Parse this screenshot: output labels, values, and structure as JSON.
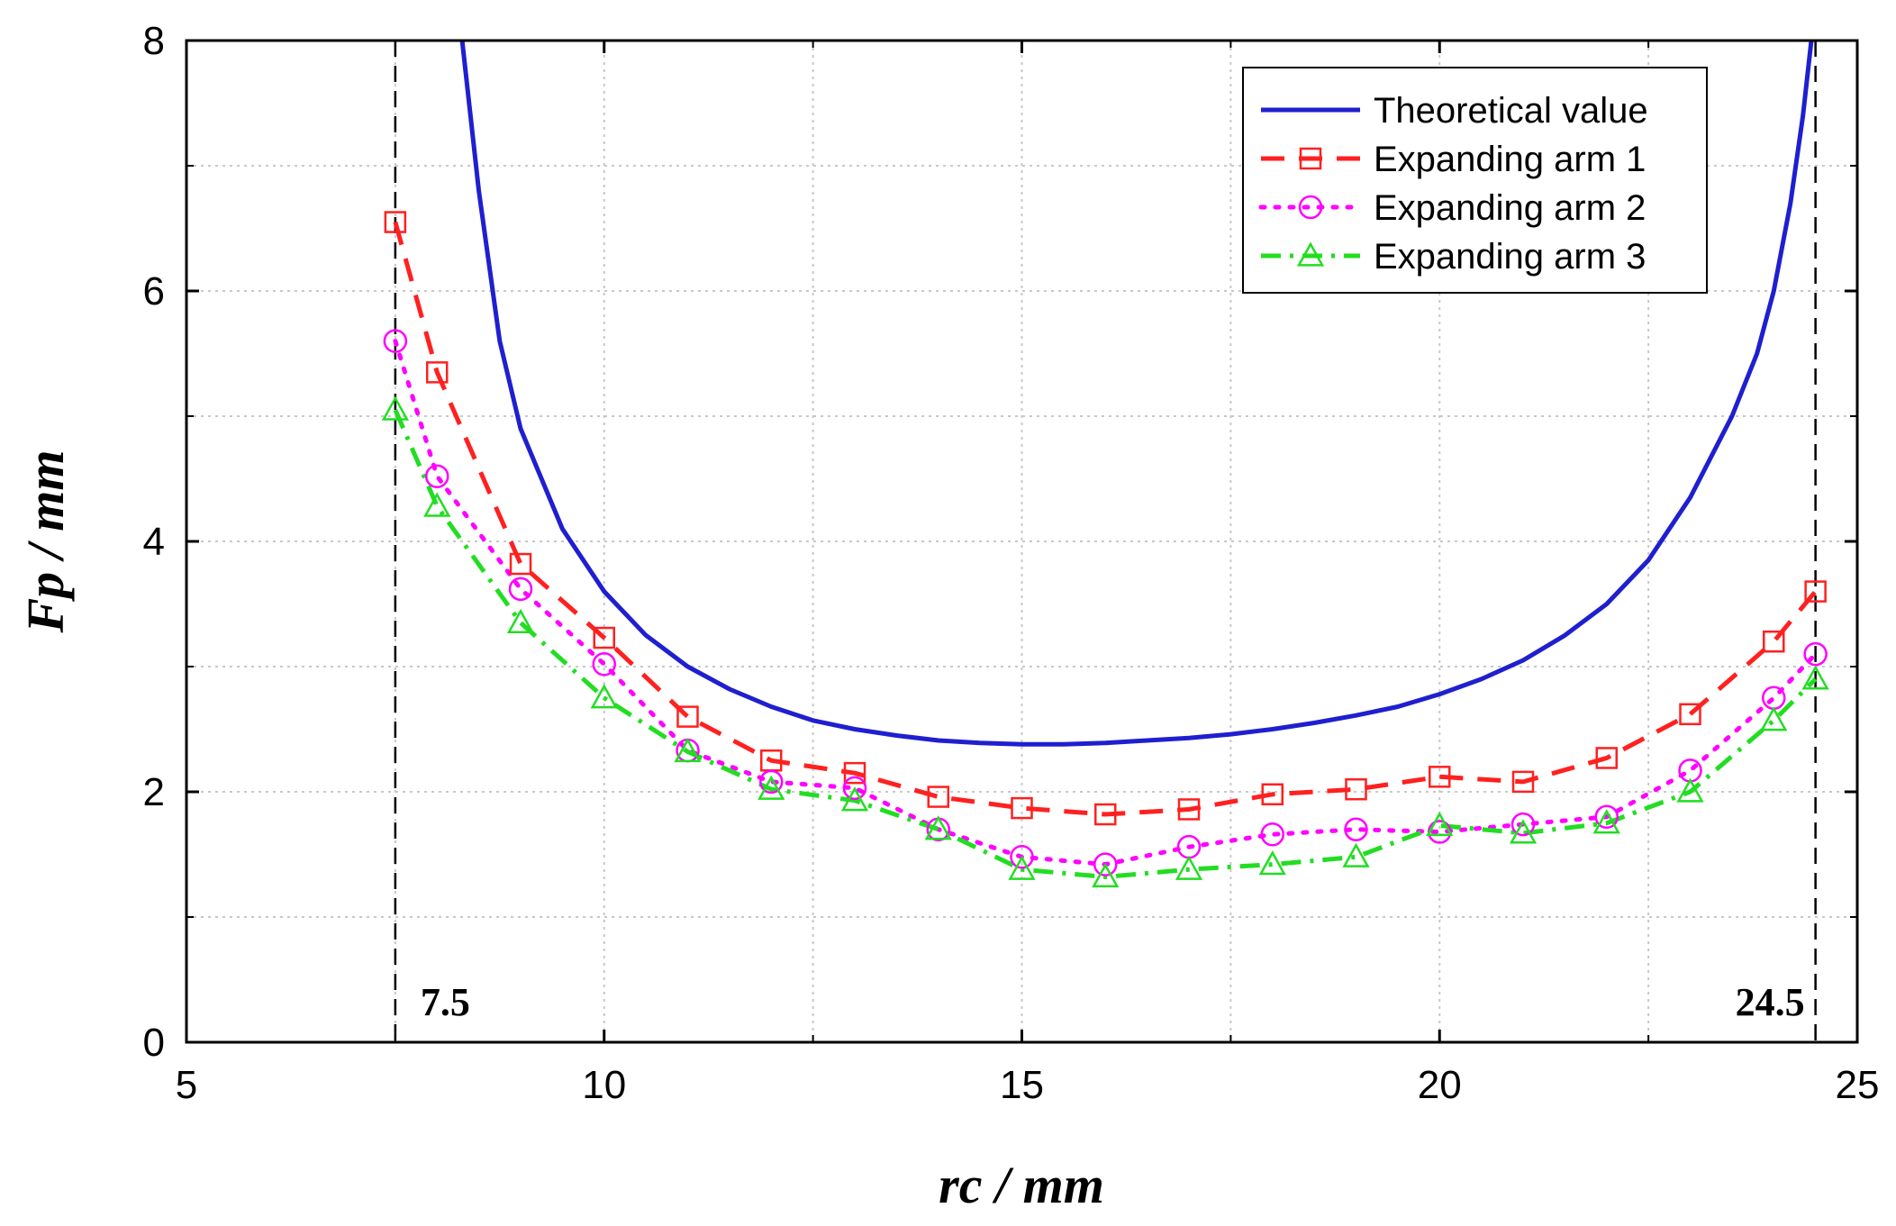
{
  "chart_data": {
    "type": "line",
    "title": "",
    "xlabel": "rc / mm",
    "ylabel": "Fp / mm",
    "xlim": [
      5,
      25
    ],
    "ylim": [
      0,
      8
    ],
    "x_ticks": [
      5,
      10,
      15,
      20,
      25
    ],
    "y_ticks": [
      0,
      2,
      4,
      6,
      8
    ],
    "x_minor_ticks": [
      7.5,
      12.5,
      17.5,
      22.5
    ],
    "y_minor_ticks": [
      1,
      3,
      5,
      7
    ],
    "grid": true,
    "legend_position": "top-right",
    "vlines": [
      {
        "x": 7.5,
        "label": "7.5"
      },
      {
        "x": 24.5,
        "label": "24.5"
      }
    ],
    "series": [
      {
        "name": "Theoretical value",
        "color": "#1f1fd0",
        "style": "solid",
        "marker": "none",
        "x": [
          8.3,
          8.5,
          8.75,
          9,
          9.5,
          10,
          10.5,
          11,
          11.5,
          12,
          12.5,
          13,
          13.5,
          14,
          14.5,
          15,
          15.5,
          16,
          16.5,
          17,
          17.5,
          18,
          18.5,
          19,
          19.5,
          20,
          20.5,
          21,
          21.5,
          22,
          22.5,
          23,
          23.5,
          23.8,
          24,
          24.2,
          24.35,
          24.45
        ],
        "y": [
          8.0,
          6.8,
          5.6,
          4.9,
          4.1,
          3.6,
          3.25,
          3.0,
          2.82,
          2.68,
          2.57,
          2.5,
          2.45,
          2.41,
          2.39,
          2.38,
          2.38,
          2.39,
          2.41,
          2.43,
          2.46,
          2.5,
          2.55,
          2.61,
          2.68,
          2.78,
          2.9,
          3.05,
          3.25,
          3.5,
          3.85,
          4.35,
          5.0,
          5.5,
          6.0,
          6.7,
          7.4,
          8.0
        ]
      },
      {
        "name": "Expanding arm 1",
        "color": "#ff2020",
        "style": "dashed",
        "marker": "square",
        "x": [
          7.5,
          8,
          9,
          10,
          11,
          12,
          13,
          14,
          15,
          16,
          17,
          18,
          19,
          20,
          21,
          22,
          23,
          24,
          24.5
        ],
        "y": [
          6.55,
          5.35,
          3.82,
          3.23,
          2.6,
          2.25,
          2.15,
          1.96,
          1.87,
          1.82,
          1.86,
          1.98,
          2.02,
          2.12,
          2.08,
          2.27,
          2.62,
          3.2,
          3.6
        ]
      },
      {
        "name": "Expanding arm 2",
        "color": "#ff00ff",
        "style": "dotted",
        "marker": "circle",
        "x": [
          7.5,
          8,
          9,
          10,
          11,
          12,
          13,
          14,
          15,
          16,
          17,
          18,
          19,
          20,
          21,
          22,
          23,
          24,
          24.5
        ],
        "y": [
          5.6,
          4.52,
          3.62,
          3.02,
          2.33,
          2.08,
          2.03,
          1.7,
          1.48,
          1.42,
          1.56,
          1.66,
          1.7,
          1.68,
          1.74,
          1.8,
          2.17,
          2.75,
          3.1
        ]
      },
      {
        "name": "Expanding arm 3",
        "color": "#22dd22",
        "style": "dash-dot",
        "marker": "triangle",
        "x": [
          7.5,
          8,
          9,
          10,
          11,
          12,
          13,
          14,
          15,
          16,
          17,
          18,
          19,
          20,
          21,
          22,
          23,
          24,
          24.5
        ],
        "y": [
          5.05,
          4.28,
          3.35,
          2.75,
          2.32,
          2.02,
          1.93,
          1.7,
          1.38,
          1.32,
          1.38,
          1.42,
          1.48,
          1.73,
          1.67,
          1.75,
          2.0,
          2.57,
          2.9
        ]
      }
    ]
  }
}
